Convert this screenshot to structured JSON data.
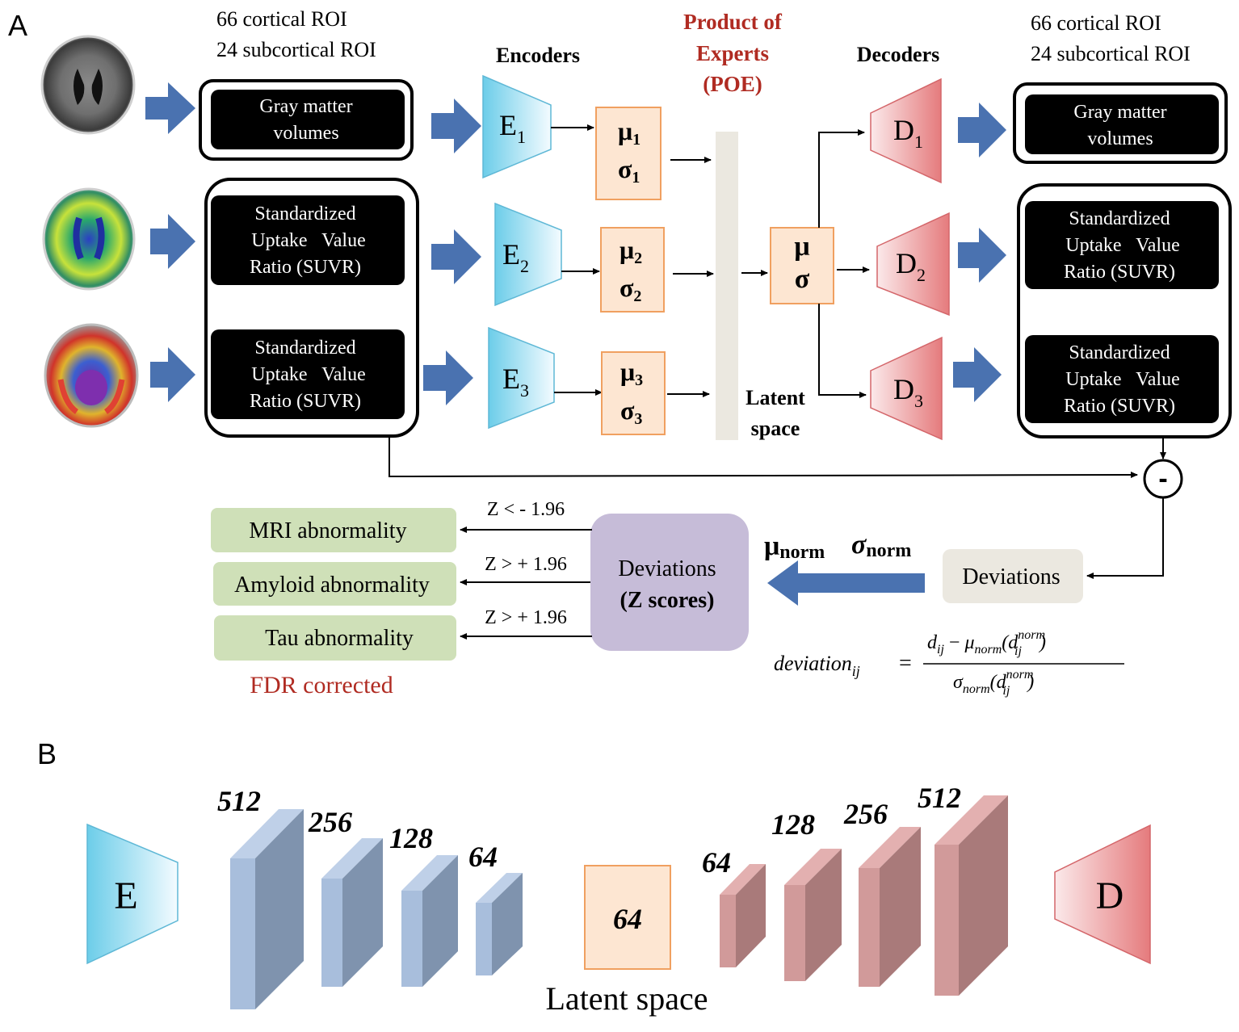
{
  "panel_a": {
    "label": "A",
    "roi_left": [
      "66 cortical ROI",
      "24 subcortical ROI"
    ],
    "roi_right": [
      "66 cortical ROI",
      "24 subcortical ROI"
    ],
    "encoders_title": "Encoders",
    "decoders_title": "Decoders",
    "poe_title": [
      "Product of",
      "Experts",
      "(POE)"
    ],
    "input_boxes": [
      [
        "Gray matter",
        "volumes"
      ],
      [
        "Standardized",
        "Uptake   Value",
        "Ratio (SUVR)"
      ],
      [
        "Standardized",
        "Uptake   Value",
        "Ratio (SUVR)"
      ]
    ],
    "output_boxes": [
      [
        "Gray matter",
        "volumes"
      ],
      [
        "Standardized",
        "Uptake   Value",
        "Ratio (SUVR)"
      ],
      [
        "Standardized",
        "Uptake   Value",
        "Ratio (SUVR)"
      ]
    ],
    "encoders": [
      {
        "letter": "E",
        "sub": "1"
      },
      {
        "letter": "E",
        "sub": "2"
      },
      {
        "letter": "E",
        "sub": "3"
      }
    ],
    "decoders": [
      {
        "letter": "D",
        "sub": "1"
      },
      {
        "letter": "D",
        "sub": "2"
      },
      {
        "letter": "D",
        "sub": "3"
      }
    ],
    "mu_sigma": [
      {
        "mu": "μ",
        "sigma": "σ",
        "sub": "1"
      },
      {
        "mu": "μ",
        "sigma": "σ",
        "sub": "2"
      },
      {
        "mu": "μ",
        "sigma": "σ",
        "sub": "3"
      }
    ],
    "joint": {
      "mu": "μ",
      "sigma": "σ"
    },
    "latent_label": [
      "Latent",
      "space"
    ],
    "minus": "-",
    "deviations_label": "Deviations",
    "z_box": [
      "Deviations",
      "(Z scores)"
    ],
    "norm_params": {
      "mu": "μ",
      "mu_sub": "norm",
      "sigma": "σ",
      "sigma_sub": "norm"
    },
    "thresholds": [
      "Z < - 1.96",
      "Z > + 1.96",
      "Z > + 1.96"
    ],
    "outcomes": [
      "MRI abnormality",
      "Amyloid abnormality",
      "Tau abnormality"
    ],
    "fdr": "FDR corrected",
    "formula": {
      "lhs": "deviation",
      "lhs_sub": "ij",
      "eq": "=",
      "num_d": "d",
      "num_d_sub": "ij",
      "num_minus": "−",
      "num_mu": "μ",
      "num_mu_sub": "norm",
      "num_paren_open": "(d",
      "num_sup": "norm",
      "num_sub2": "ij",
      "num_paren_close": ")",
      "den_sigma": "σ",
      "den_sigma_sub": "norm",
      "den_paren_open": "(d",
      "den_sup": "norm",
      "den_sub2": "ij",
      "den_paren_close": ")"
    }
  },
  "panel_b": {
    "label": "B",
    "encoder_letter": "E",
    "decoder_letter": "D",
    "encoder_layers": [
      "512",
      "256",
      "128",
      "64"
    ],
    "latent_value": "64",
    "decoder_layers": [
      "64",
      "128",
      "256",
      "512"
    ],
    "latent_caption": "Latent space"
  },
  "colors": {
    "black_box": "#000000",
    "arrow_blue": "#4a72b0",
    "encoder_cyan": "#7fd4ee",
    "decoder_red": "#e98a8a",
    "musigma_fill": "#fde6d2",
    "musigma_border": "#f0a060",
    "latent_bar": "#ebe8e0",
    "outcome_green": "#cfe0b8",
    "z_purple": "#c6bcd8",
    "deviation_box": "#ebe8e0",
    "red_text": "#b02b22",
    "enc_block": "#a8bedc",
    "dec_block": "#d19a9a"
  }
}
